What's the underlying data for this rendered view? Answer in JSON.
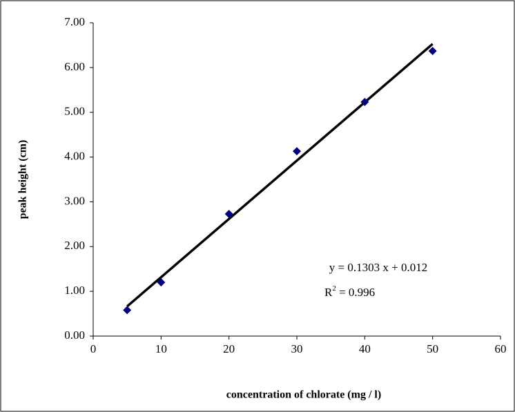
{
  "chart_data": {
    "type": "scatter",
    "y_label": "peak height (cm)",
    "x_label": "concentration of chlorate (mg / l)",
    "x": [
      5,
      10,
      20,
      30,
      40,
      50
    ],
    "series": [
      {
        "color": "#000080",
        "values": [
          0.58,
          1.2,
          2.73,
          4.13,
          5.23,
          6.37
        ]
      }
    ],
    "trendline": {
      "color": "#000000",
      "x": [
        5,
        50
      ],
      "values": [
        0.664,
        6.527
      ]
    },
    "equation": "y = 0.1303 x + 0.012",
    "r_squared": {
      "base": "R",
      "sup": "2",
      "rest": " = 0.996"
    },
    "xlim": [
      0,
      60
    ],
    "xticks": [
      0,
      10,
      20,
      30,
      40,
      50,
      60
    ],
    "ylim": [
      0,
      7
    ],
    "yticks": [
      {
        "value": 0,
        "label": "0.00"
      },
      {
        "value": 1,
        "label": "1.00"
      },
      {
        "value": 2,
        "label": "2.00"
      },
      {
        "value": 3,
        "label": "3.00"
      },
      {
        "value": 4,
        "label": "4.00"
      },
      {
        "value": 5,
        "label": "5.00"
      },
      {
        "value": 6,
        "label": "6.00"
      },
      {
        "value": 7,
        "label": "7.00"
      }
    ]
  }
}
